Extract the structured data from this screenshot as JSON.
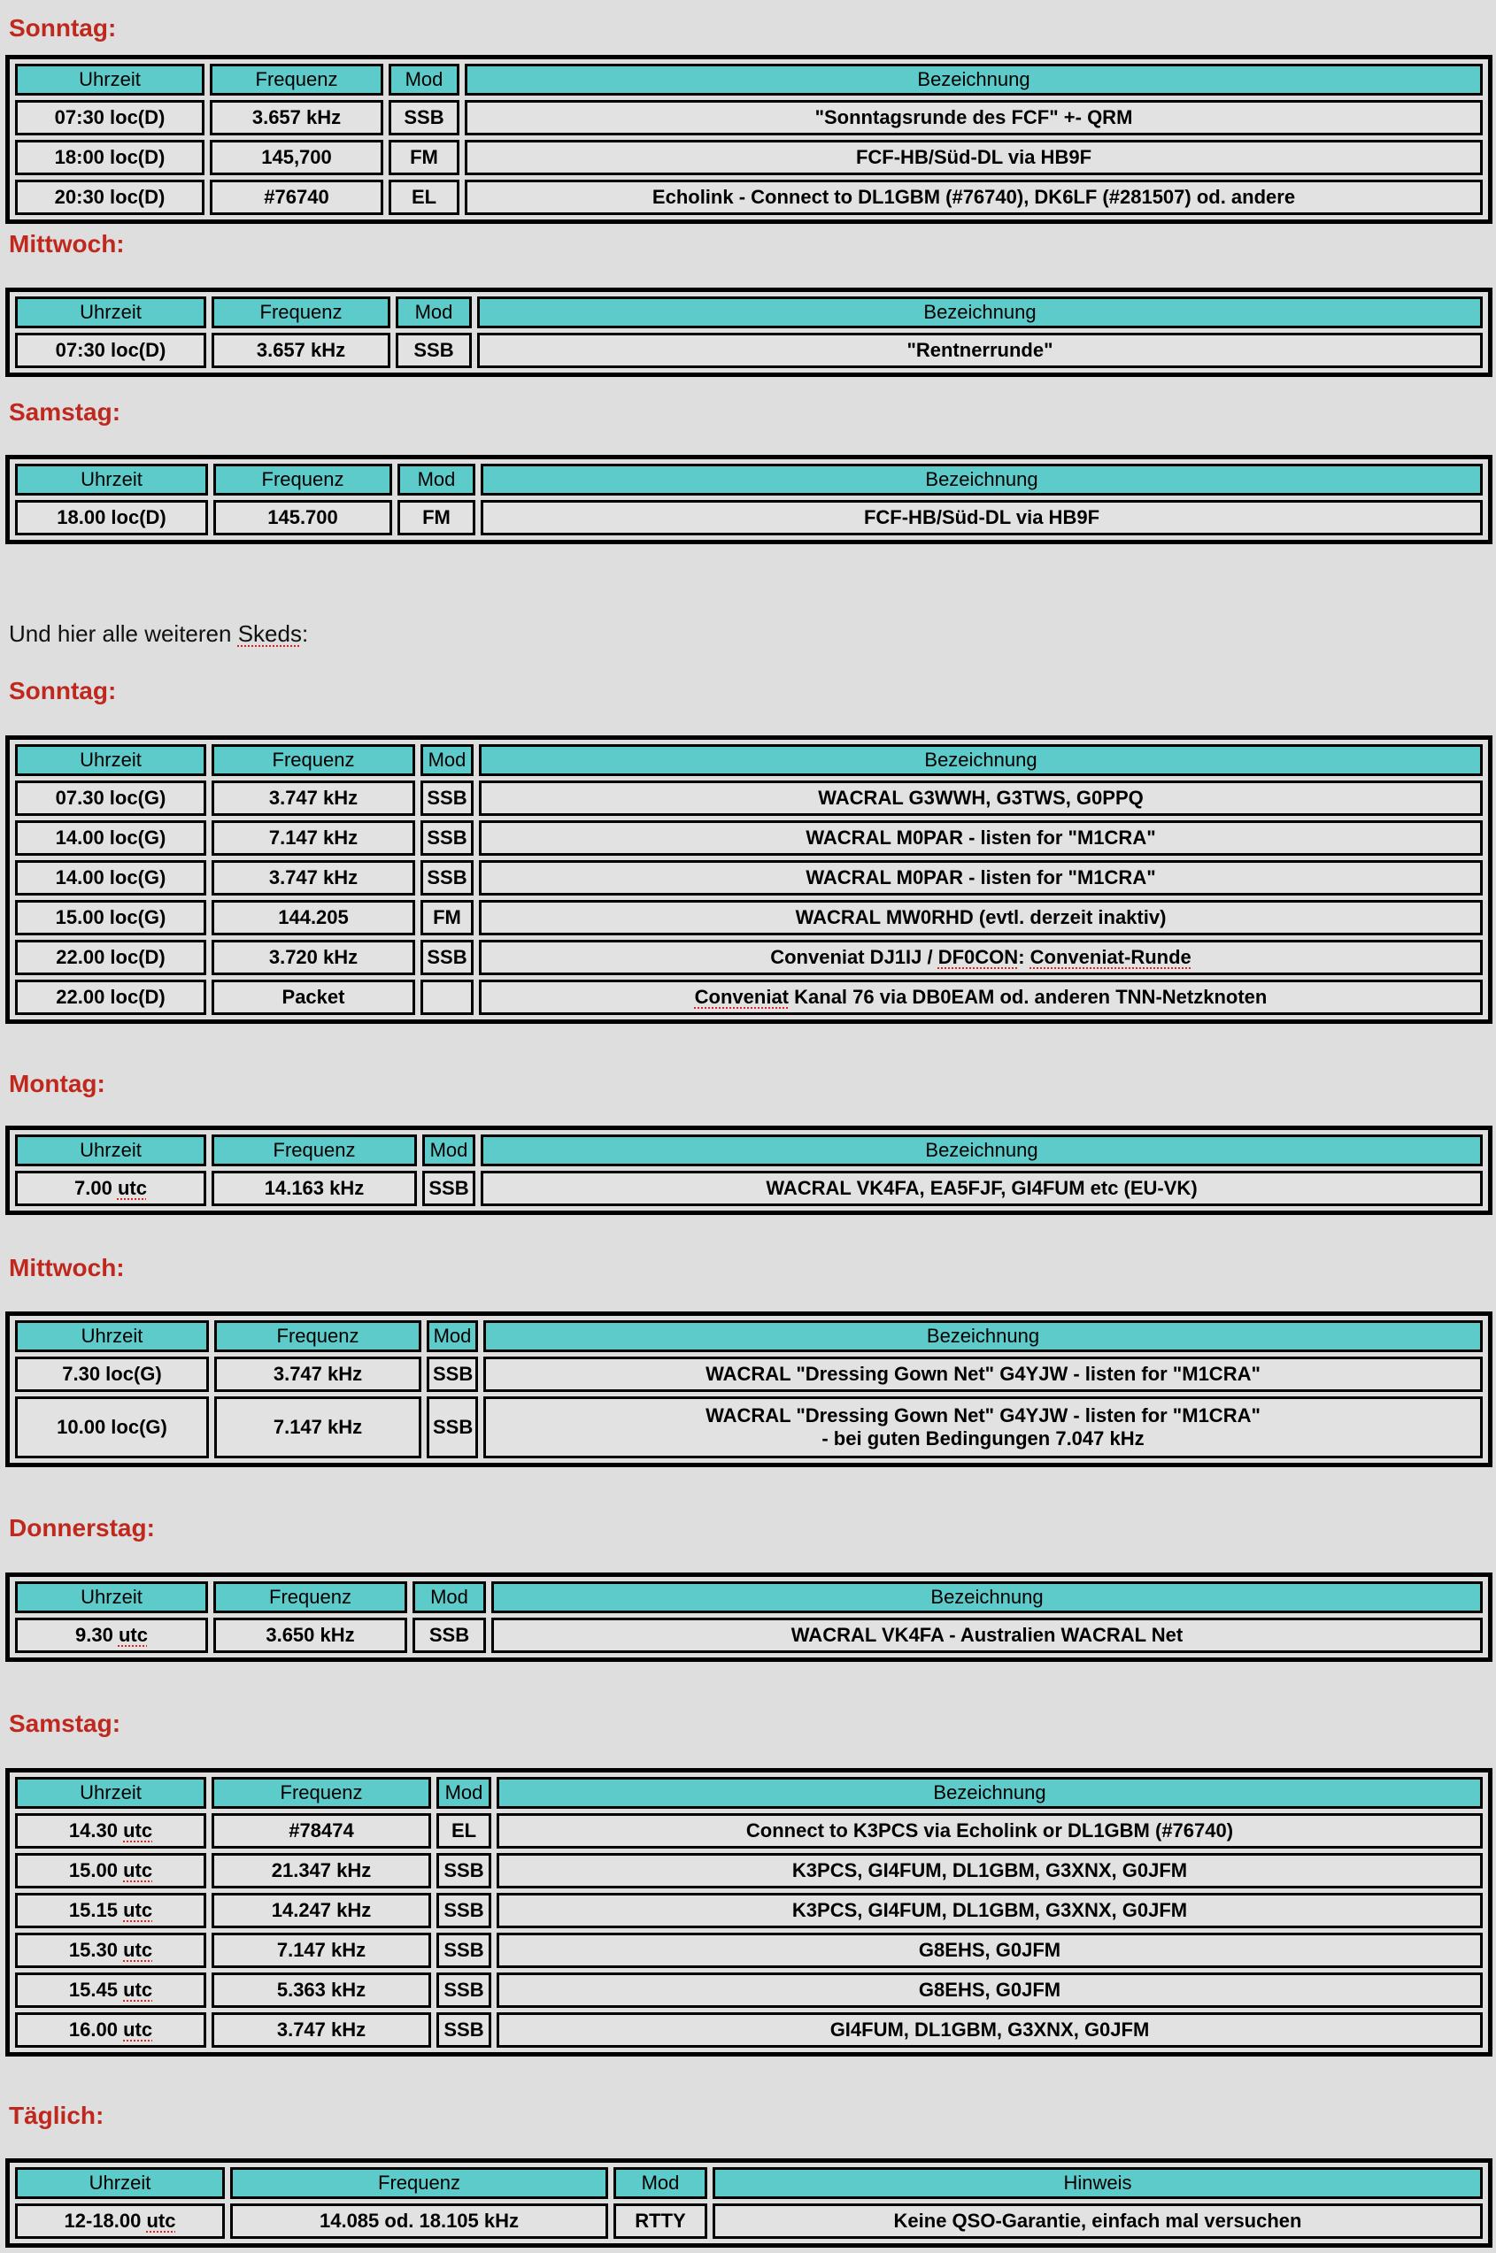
{
  "intro_text": "Und hier alle weiteren Skeds:",
  "colors": {
    "heading": "#c0281e",
    "header_bg": "#5ecbcb",
    "background": "#dedede"
  },
  "sections": [
    {
      "heading": "Sonntag:",
      "columns": [
        "Uhrzeit",
        "Frequenz",
        "Mod",
        "Bezeichnung"
      ],
      "rows": [
        [
          "07:30 loc(D)",
          "3.657 kHz",
          "SSB",
          "\"Sonntagsrunde des FCF\"  +- QRM"
        ],
        [
          "18:00  loc(D)",
          "145,700",
          "FM",
          "FCF-HB/Süd-DL via HB9F"
        ],
        [
          "20:30  loc(D)",
          "#76740",
          "EL",
          "Echolink - Connect to DL1GBM (#76740), DK6LF (#281507) od. andere"
        ]
      ]
    },
    {
      "heading": "Mittwoch:",
      "columns": [
        "Uhrzeit",
        "Frequenz",
        "Mod",
        "Bezeichnung"
      ],
      "rows": [
        [
          "07:30  loc(D)",
          "3.657 kHz",
          "SSB",
          "\"Rentnerrunde\""
        ]
      ]
    },
    {
      "heading": "Samstag:",
      "columns": [
        "Uhrzeit",
        "Frequenz",
        "Mod",
        "Bezeichnung"
      ],
      "rows": [
        [
          "18.00 loc(D)",
          "145.700",
          "FM",
          "FCF-HB/Süd-DL via HB9F"
        ]
      ]
    },
    {
      "heading": "Sonntag:",
      "columns": [
        "Uhrzeit",
        "Frequenz",
        "Mod",
        "Bezeichnung"
      ],
      "rows": [
        [
          "07.30  loc(G)",
          "3.747 kHz",
          "SSB",
          "WACRAL G3WWH, G3TWS, G0PPQ"
        ],
        [
          "14.00  loc(G)",
          "7.147 kHz",
          "SSB",
          "WACRAL M0PAR - listen for \"M1CRA\""
        ],
        [
          "14.00  loc(G)",
          "3.747 kHz",
          "SSB",
          "WACRAL M0PAR - listen for \"M1CRA\""
        ],
        [
          "15.00  loc(G)",
          "144.205",
          "FM",
          "WACRAL MW0RHD (evtl. derzeit inaktiv)"
        ],
        [
          "22.00  loc(D)",
          "3.720 kHz",
          "SSB",
          "Conveniat  DJ1IJ / DF0CON: Conveniat-Runde"
        ],
        [
          "22.00  loc(D)",
          "Packet",
          "",
          "Conveniat Kanal 76 via DB0EAM od. anderen TNN-Netzknoten"
        ]
      ]
    },
    {
      "heading": "Montag:",
      "columns": [
        "Uhrzeit",
        "Frequenz",
        "Mod",
        "Bezeichnung"
      ],
      "rows": [
        [
          "7.00  utc",
          "14.163 kHz",
          "SSB",
          "WACRAL VK4FA, EA5FJF, GI4FUM etc (EU-VK)"
        ]
      ]
    },
    {
      "heading": "Mittwoch:",
      "columns": [
        "Uhrzeit",
        "Frequenz",
        "Mod",
        "Bezeichnung"
      ],
      "rows": [
        [
          "7.30  loc(G)",
          "3.747 kHz",
          "SSB",
          "WACRAL \"Dressing Gown Net\" G4YJW - listen for \"M1CRA\""
        ],
        [
          "10.00  loc(G)",
          "7.147 kHz",
          "SSB",
          "WACRAL \"Dressing Gown Net\" G4YJW - listen for \"M1CRA\"\n- bei guten Bedingungen  7.047 kHz"
        ]
      ]
    },
    {
      "heading": "Donnerstag:",
      "columns": [
        "Uhrzeit",
        "Frequenz",
        "Mod",
        "Bezeichnung"
      ],
      "rows": [
        [
          "9.30  utc",
          "3.650 kHz",
          "SSB",
          "WACRAL VK4FA - Australien WACRAL Net"
        ]
      ]
    },
    {
      "heading": "Samstag:",
      "columns": [
        "Uhrzeit",
        "Frequenz",
        "Mod",
        "Bezeichnung"
      ],
      "rows": [
        [
          "14.30  utc",
          "#78474",
          "EL",
          "Connect to K3PCS via Echolink or DL1GBM (#76740)"
        ],
        [
          "15.00  utc",
          "21.347 kHz",
          "SSB",
          "K3PCS, GI4FUM, DL1GBM, G3XNX, G0JFM"
        ],
        [
          "15.15  utc",
          "14.247 kHz",
          "SSB",
          "K3PCS, GI4FUM, DL1GBM, G3XNX, G0JFM"
        ],
        [
          "15.30  utc",
          "7.147 kHz",
          "SSB",
          "G8EHS, G0JFM"
        ],
        [
          "15.45  utc",
          "5.363 kHz",
          "SSB",
          "G8EHS, G0JFM"
        ],
        [
          "16.00  utc",
          "3.747 kHz",
          "SSB",
          "GI4FUM, DL1GBM, G3XNX, G0JFM"
        ]
      ]
    },
    {
      "heading": "Täglich:",
      "columns": [
        "Uhrzeit",
        "Frequenz",
        "Mod",
        "Hinweis"
      ],
      "rows": [
        [
          "12-18.00 utc",
          "14.085 od. 18.105 kHz",
          "RTTY",
          "Keine QSO-Garantie, einfach mal versuchen"
        ]
      ]
    }
  ]
}
